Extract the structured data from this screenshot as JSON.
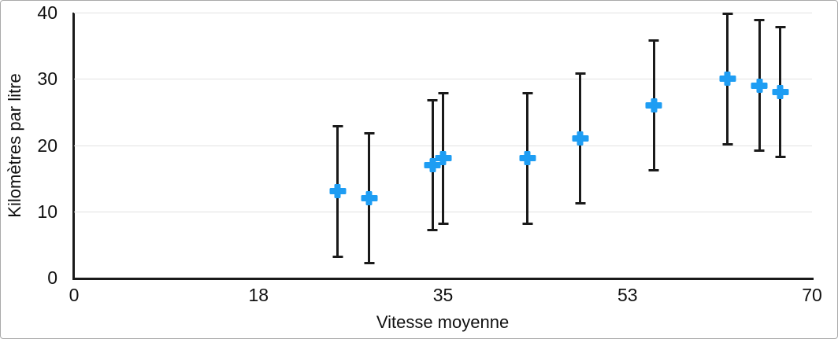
{
  "chart_data": {
    "type": "scatter",
    "title": "",
    "xlabel": "Vitesse moyenne",
    "ylabel": "Kilomètres par litre",
    "xlim": [
      0,
      70
    ],
    "ylim": [
      0,
      40
    ],
    "grid": "horizontal",
    "legend": "none",
    "x_ticks": [
      {
        "value": 0,
        "label": "0"
      },
      {
        "value": 17.5,
        "label": "18"
      },
      {
        "value": 35,
        "label": "35"
      },
      {
        "value": 52.5,
        "label": "53"
      },
      {
        "value": 70,
        "label": "70"
      }
    ],
    "y_ticks": [
      {
        "value": 0,
        "label": "0"
      },
      {
        "value": 10,
        "label": "10"
      },
      {
        "value": 20,
        "label": "20"
      },
      {
        "value": 30,
        "label": "30"
      },
      {
        "value": 40,
        "label": "40"
      }
    ],
    "marker": {
      "shape": "plus",
      "color": "#1e9df3"
    },
    "error_bars": {
      "type": "fixed",
      "value": 10,
      "color": "#1a1a1a"
    },
    "points": [
      {
        "x": 25,
        "y": 13,
        "err": 10
      },
      {
        "x": 28,
        "y": 12,
        "err": 10
      },
      {
        "x": 34,
        "y": 17,
        "err": 10
      },
      {
        "x": 35,
        "y": 18,
        "err": 10
      },
      {
        "x": 43,
        "y": 18,
        "err": 10
      },
      {
        "x": 48,
        "y": 21,
        "err": 10
      },
      {
        "x": 55,
        "y": 26,
        "err": 10
      },
      {
        "x": 62,
        "y": 30,
        "err": 10
      },
      {
        "x": 65,
        "y": 29,
        "err": 10
      },
      {
        "x": 67,
        "y": 28,
        "err": 10
      }
    ],
    "colors": {
      "axis": "#1a1a1a",
      "gridline": "#e2e2e2",
      "text": "#111111",
      "figure_border": "#a9a9a9",
      "background": "#ffffff"
    }
  }
}
